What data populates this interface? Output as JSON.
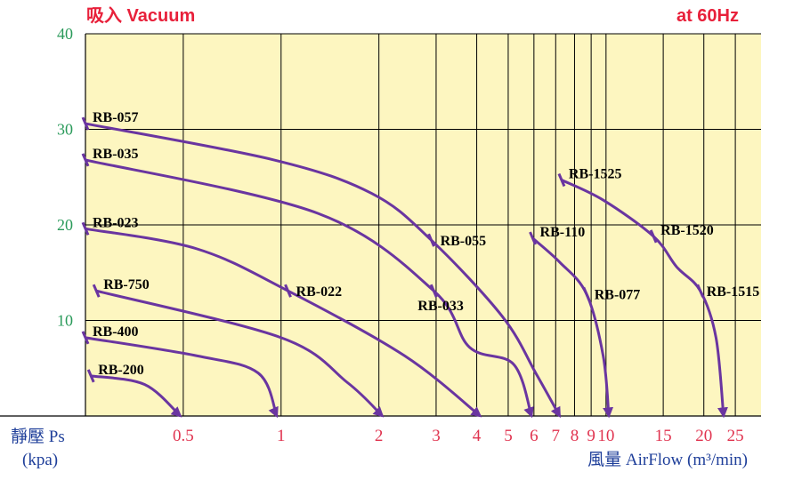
{
  "chart_data": {
    "type": "line",
    "title": "吸入 Vacuum",
    "subtitle": "at 60Hz",
    "y_label": "靜壓 Ps",
    "y_unit": "(kpa)",
    "x_label": "風量 AirFlow (m³/min)",
    "x_scale": "log",
    "grid": true,
    "color": "#6a35a0",
    "background": "#fdf6c0",
    "xlim": [
      0.25,
      30
    ],
    "xticks": [
      0.5,
      1,
      2,
      3,
      4,
      5,
      6,
      7,
      8,
      9,
      10,
      15,
      20,
      25
    ],
    "ylim": [
      0,
      40
    ],
    "yticks": [
      10,
      20,
      30,
      40
    ],
    "series": [
      {
        "x": [
          0.25,
          0.95,
          1.9,
          2.9,
          4.8,
          6.1,
          7.2
        ],
        "values": [
          30.6,
          26.8,
          23.3,
          18.4,
          10.4,
          4.4,
          0
        ]
      },
      {
        "x": [
          0.25,
          1.3,
          2.95,
          3.8,
          5.2,
          5.9
        ],
        "values": [
          26.8,
          21.2,
          13.1,
          7.2,
          5.4,
          0
        ]
      },
      {
        "x": [
          0.25,
          0.55,
          1.05,
          2.4,
          4.1
        ],
        "values": [
          19.6,
          17.5,
          13.1,
          6.3,
          0
        ]
      },
      {
        "x": [
          0.27,
          1,
          1.6,
          2.05
        ],
        "values": [
          13.1,
          8.2,
          3.5,
          0
        ]
      },
      {
        "x": [
          0.25,
          0.55,
          0.85,
          0.97
        ],
        "values": [
          8.2,
          6.3,
          4.5,
          0
        ]
      },
      {
        "x": [
          0.26,
          0.38,
          0.49
        ],
        "values": [
          4.2,
          3.3,
          0
        ]
      },
      {
        "x": [
          5.95,
          7.2,
          8.7,
          9.8,
          10.2
        ],
        "values": [
          18.6,
          16.1,
          12.8,
          6.3,
          0
        ]
      },
      {
        "x": [
          7.3,
          9.8,
          14,
          16.5,
          19.5,
          21.8,
          23
        ],
        "values": [
          24.7,
          22.6,
          18.8,
          15.6,
          13.1,
          8.2,
          0
        ]
      }
    ],
    "annotations": [
      {
        "text": "RB-057",
        "x": 0.25,
        "y": 30.6
      },
      {
        "text": "RB-035",
        "x": 0.25,
        "y": 26.8
      },
      {
        "text": "RB-023",
        "x": 0.25,
        "y": 19.6
      },
      {
        "text": "RB-750",
        "x": 0.27,
        "y": 13.1
      },
      {
        "text": "RB-400",
        "x": 0.25,
        "y": 8.2
      },
      {
        "text": "RB-200",
        "x": 0.26,
        "y": 4.2
      },
      {
        "text": "RB-055",
        "x": 2.9,
        "y": 18.4
      },
      {
        "text": "RB-033",
        "x": 2.95,
        "y": 13.1
      },
      {
        "text": "RB-022",
        "x": 1.05,
        "y": 13.1
      },
      {
        "text": "RB-110",
        "x": 5.95,
        "y": 18.6
      },
      {
        "text": "RB-077",
        "x": 8.7,
        "y": 12.8
      },
      {
        "text": "RB-1525",
        "x": 7.3,
        "y": 24.7
      },
      {
        "text": "RB-1520",
        "x": 14,
        "y": 18.8
      },
      {
        "text": "RB-1515",
        "x": 19.5,
        "y": 13.1
      }
    ]
  }
}
